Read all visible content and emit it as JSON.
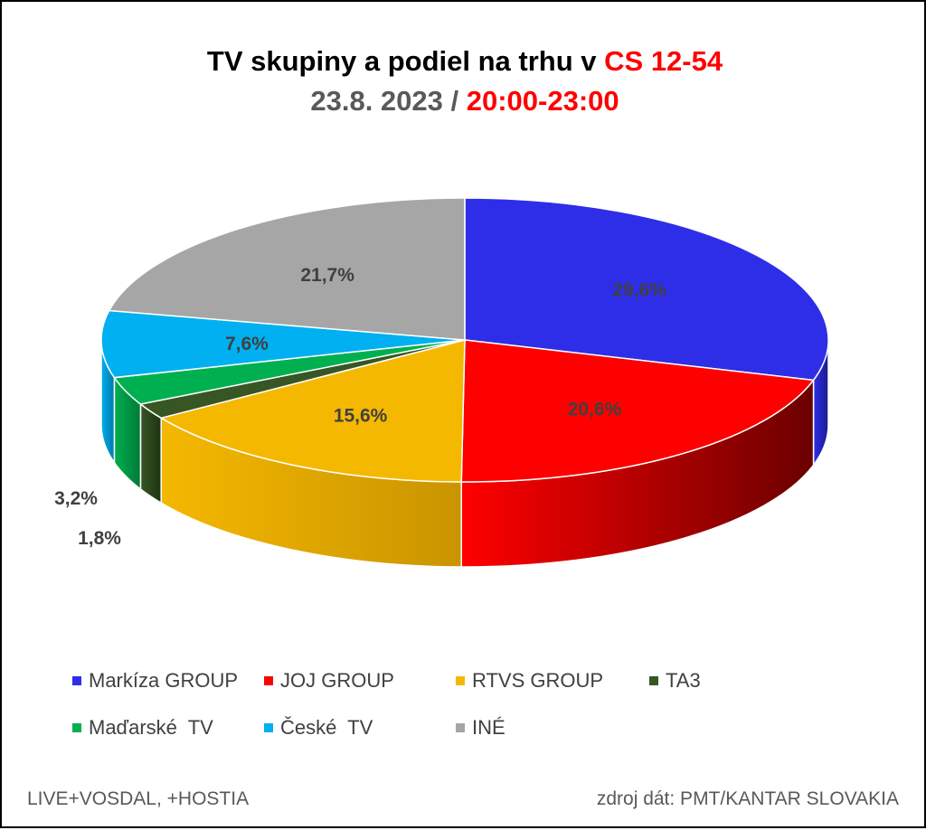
{
  "title": {
    "line1_part1": "TV skupiny a podiel na trhu v ",
    "line1_part2": "CS 12-54",
    "line2_part1": "23.8. 2023 / ",
    "line2_part2": "20:00-23:00"
  },
  "chart_data": {
    "type": "pie",
    "style": "3d",
    "categories": [
      "Markíza GROUP",
      "JOJ GROUP",
      "RTVS GROUP",
      "TA3",
      "Maďarské  TV",
      "České  TV",
      "INÉ"
    ],
    "values": [
      29.6,
      20.6,
      15.6,
      1.8,
      3.2,
      7.6,
      21.7
    ],
    "data_labels": [
      "29,6%",
      "20,6%",
      "15,6%",
      "1,8%",
      "3,2%",
      "7,6%",
      "21,7%"
    ],
    "colors": [
      "#2e2ee8",
      "#ff0000",
      "#f5b800",
      "#375623",
      "#00b050",
      "#00b0f0",
      "#a6a6a6"
    ],
    "side_colors": [
      "#1a1a90",
      "#6b0000",
      "#c99400",
      "#1f3314",
      "#007a36",
      "#0078a8",
      "#707070"
    ],
    "legend_placement": "bottom"
  },
  "footer": {
    "left": "LIVE+VOSDAL, +HOSTIA",
    "right": "zdroj dát: PMT/KANTAR SLOVAKIA"
  }
}
